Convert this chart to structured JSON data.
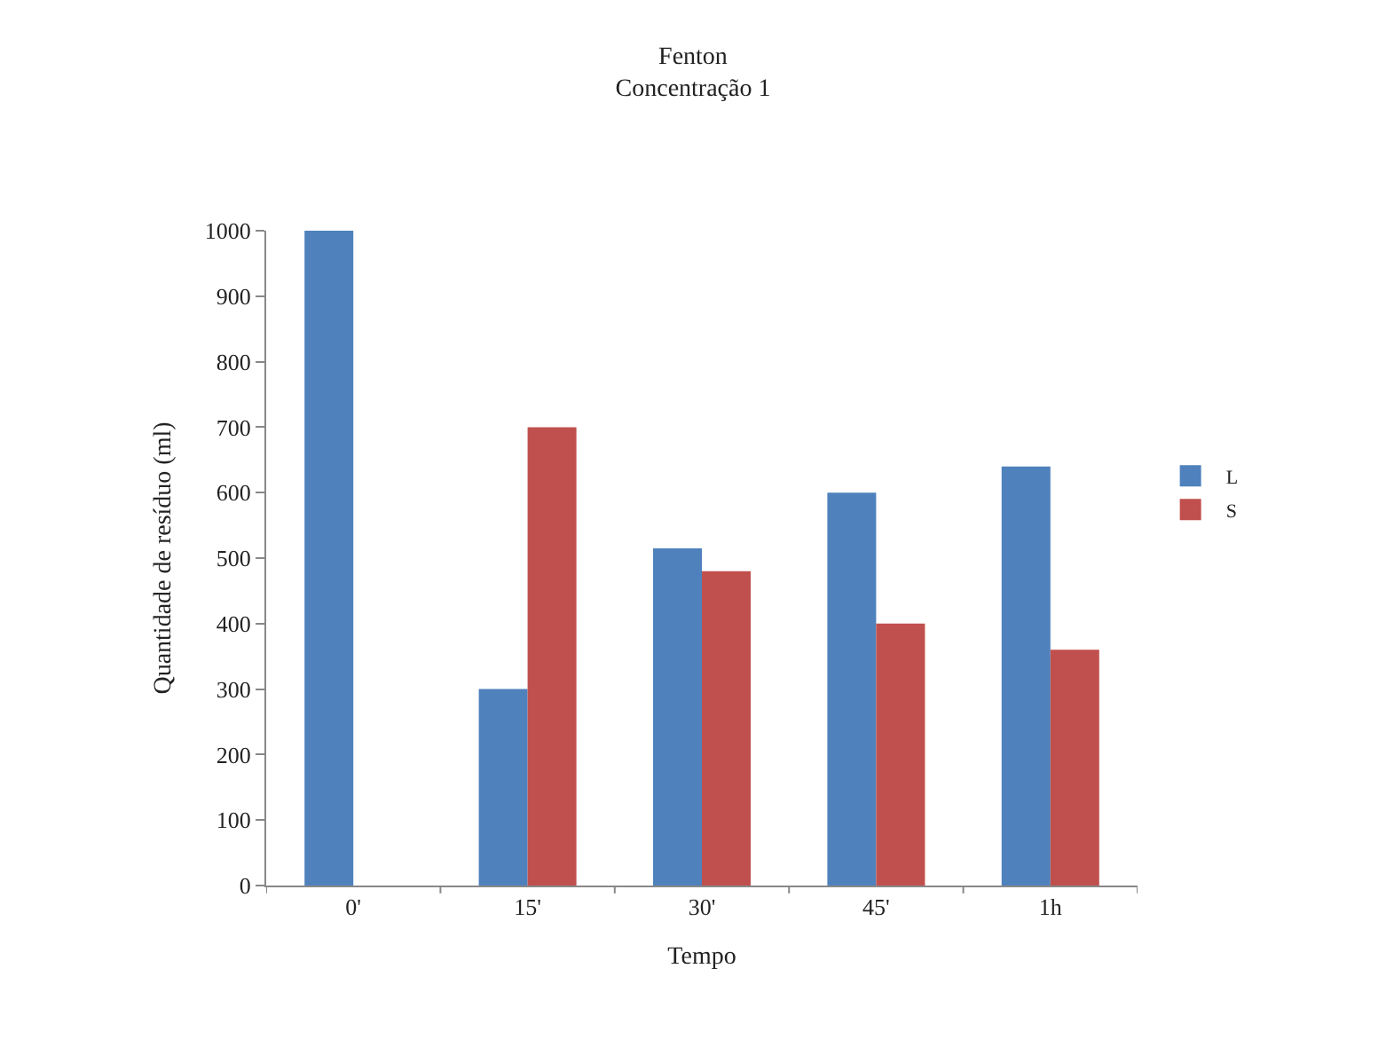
{
  "chart_data": {
    "type": "bar",
    "title": "Fenton\nConcentração 1",
    "xlabel": "Tempo",
    "ylabel": "Quantidade de resíduo (ml)",
    "categories": [
      "0'",
      "15'",
      "30'",
      "45'",
      "1h"
    ],
    "series": [
      {
        "name": "L",
        "color": "#4f81bd",
        "values": [
          1000,
          300,
          515,
          600,
          640
        ]
      },
      {
        "name": "S",
        "color": "#c0504d",
        "values": [
          null,
          700,
          480,
          400,
          360
        ]
      }
    ],
    "ylim": [
      0,
      1000
    ],
    "yticks": [
      0,
      100,
      200,
      300,
      400,
      500,
      600,
      700,
      800,
      900,
      1000
    ],
    "grid": false,
    "legend": "right"
  }
}
